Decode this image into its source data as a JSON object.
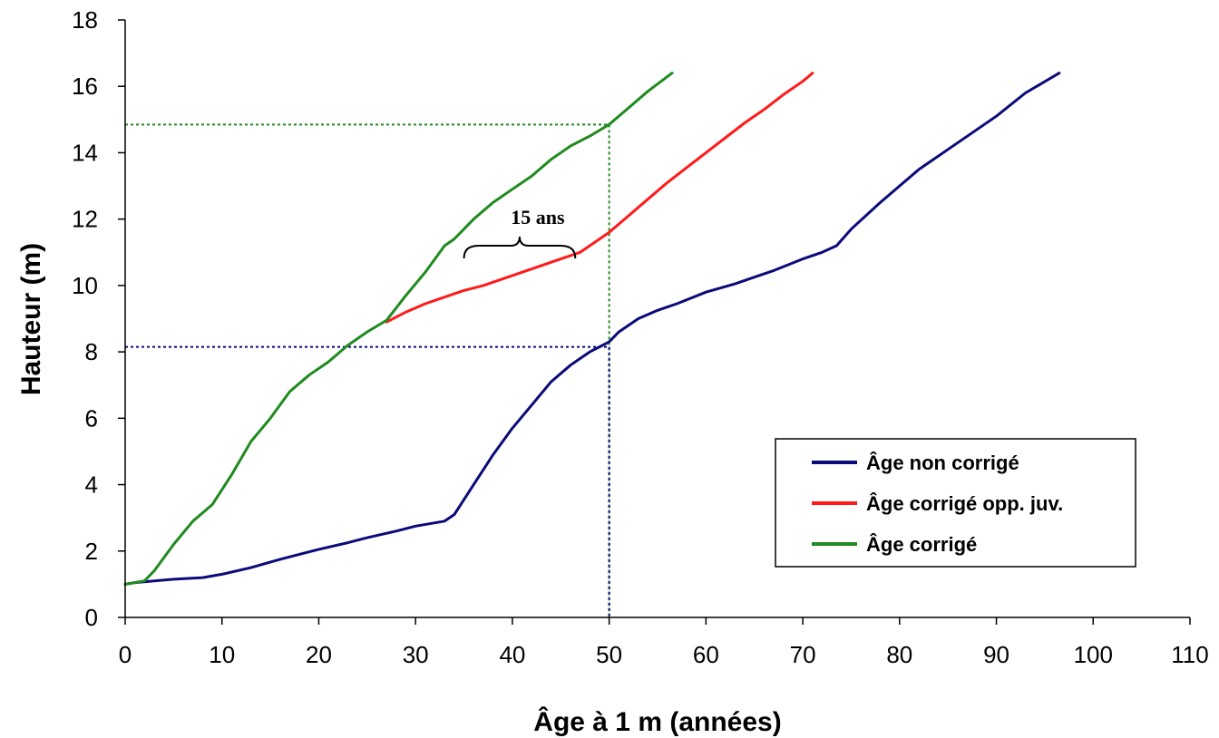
{
  "chart_data": {
    "type": "line",
    "title": "",
    "xlabel": "Âge à 1 m (années)",
    "ylabel": "Hauteur (m)",
    "xlim": [
      0,
      110
    ],
    "ylim": [
      0,
      18
    ],
    "xticks": [
      0,
      10,
      20,
      30,
      40,
      50,
      60,
      70,
      80,
      90,
      100,
      110
    ],
    "yticks": [
      0,
      2,
      4,
      6,
      8,
      10,
      12,
      14,
      16,
      18
    ],
    "grid": false,
    "legend_position": "bottom-right",
    "series": [
      {
        "name": "Âge non corrigé",
        "color": "#0a0a7a",
        "x": [
          0,
          1,
          3,
          5,
          8,
          10,
          13,
          16,
          18,
          20,
          23,
          25,
          28,
          30,
          33,
          34,
          36,
          38,
          40,
          42,
          44,
          46,
          48,
          50,
          51,
          53,
          55,
          57,
          60,
          63,
          65,
          67,
          70,
          72,
          73.5,
          75,
          78,
          80,
          82,
          85,
          88,
          90,
          93,
          96.5
        ],
        "y": [
          1.0,
          1.05,
          1.1,
          1.15,
          1.2,
          1.3,
          1.5,
          1.75,
          1.9,
          2.05,
          2.25,
          2.4,
          2.6,
          2.75,
          2.9,
          3.1,
          4.0,
          4.9,
          5.7,
          6.4,
          7.1,
          7.6,
          8.0,
          8.3,
          8.6,
          9.0,
          9.25,
          9.45,
          9.8,
          10.05,
          10.25,
          10.45,
          10.8,
          11.0,
          11.2,
          11.7,
          12.5,
          13.0,
          13.5,
          14.1,
          14.7,
          15.1,
          15.8,
          16.4
        ]
      },
      {
        "name": "Âge corrigé opp. juv.",
        "color": "#ff1a1a",
        "x": [
          27,
          29,
          31,
          33,
          35,
          37,
          40,
          43,
          45,
          47,
          48,
          50,
          52,
          54,
          56,
          58,
          60,
          62,
          64,
          66,
          68,
          70,
          71
        ],
        "y": [
          8.9,
          9.2,
          9.45,
          9.65,
          9.85,
          10.0,
          10.3,
          10.6,
          10.8,
          11.0,
          11.2,
          11.6,
          12.1,
          12.6,
          13.1,
          13.55,
          14.0,
          14.45,
          14.9,
          15.3,
          15.75,
          16.15,
          16.4
        ]
      },
      {
        "name": "Âge corrigé",
        "color": "#1f8a1f",
        "x": [
          0,
          1,
          2,
          3,
          5,
          7,
          9,
          11,
          13,
          15,
          17,
          19,
          21,
          23,
          25,
          27,
          29,
          31,
          33,
          34,
          36,
          38,
          40,
          42,
          44,
          46,
          48,
          50,
          52,
          54,
          56.5
        ],
        "y": [
          1.0,
          1.05,
          1.1,
          1.4,
          2.2,
          2.9,
          3.4,
          4.3,
          5.3,
          6.0,
          6.8,
          7.3,
          7.7,
          8.2,
          8.6,
          8.95,
          9.7,
          10.4,
          11.2,
          11.4,
          12.0,
          12.5,
          12.9,
          13.3,
          13.8,
          14.2,
          14.5,
          14.85,
          15.35,
          15.85,
          16.4
        ]
      }
    ],
    "reference_lines": [
      {
        "color": "#1f8a1f",
        "x": 50,
        "y": 14.85
      },
      {
        "color": "#0a0a7a",
        "x": 50,
        "y": 8.15
      }
    ],
    "annotation": {
      "text": "15 ans",
      "x_start": 35,
      "x_end": 46.5,
      "y": 11.2
    }
  }
}
